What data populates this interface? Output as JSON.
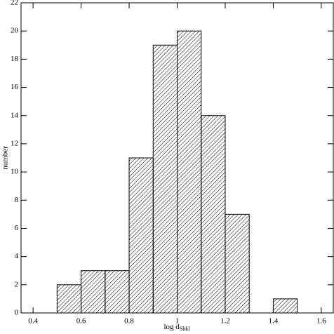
{
  "chart_data": {
    "type": "histogram",
    "xlabel": "log d",
    "xlabel_sub": "Shkl",
    "ylabel": "number",
    "bins": [
      0.5,
      0.6,
      0.7,
      0.8,
      0.9,
      1.0,
      1.1,
      1.2,
      1.3,
      1.4,
      1.5
    ],
    "values": [
      2,
      3,
      3,
      11,
      19,
      20,
      14,
      7,
      0,
      1
    ],
    "color": "#000000",
    "xlim": [
      0.35,
      1.65
    ],
    "ylim": [
      0,
      22
    ],
    "xticks": [
      0.4,
      0.6,
      0.8,
      1,
      1.2,
      1.4,
      1.6
    ],
    "yticks": [
      0,
      2,
      4,
      6,
      8,
      10,
      12,
      14,
      16,
      18,
      20,
      22
    ]
  }
}
